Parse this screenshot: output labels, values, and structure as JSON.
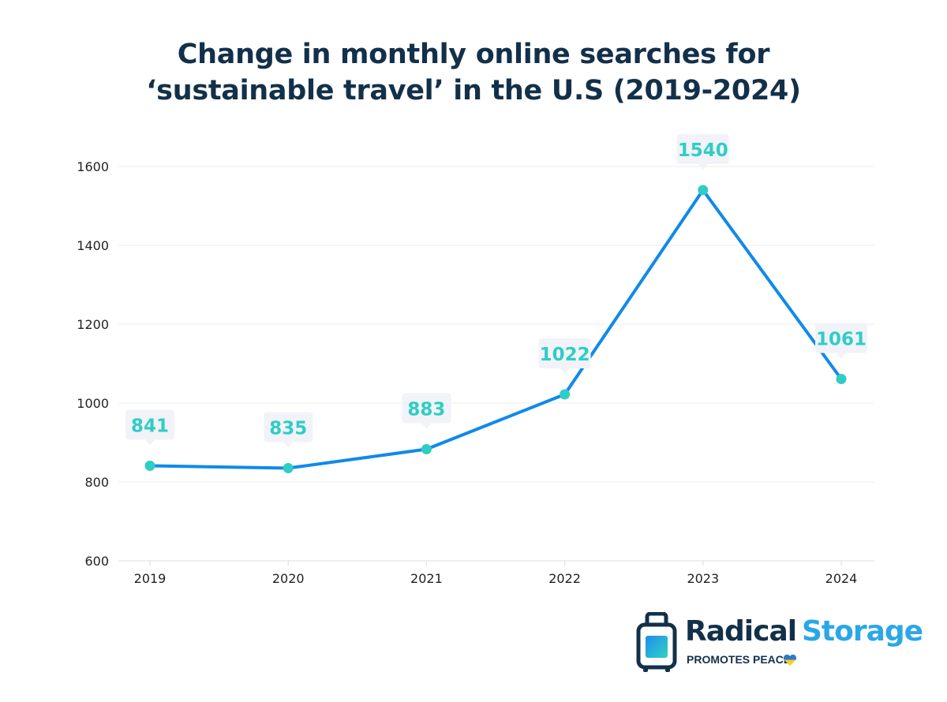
{
  "chart_data": {
    "type": "line",
    "title_line1": "Change in monthly online searches for",
    "title_line2": "‘sustainable travel’ in the U.S (2019-2024)",
    "categories": [
      "2019",
      "2020",
      "2021",
      "2022",
      "2023",
      "2024"
    ],
    "values": [
      841,
      835,
      883,
      1022,
      1540,
      1061
    ],
    "data_labels": [
      "841",
      "835",
      "883",
      "1022",
      "1540",
      "1061"
    ],
    "yticks": [
      600,
      800,
      1000,
      1200,
      1400,
      1600
    ],
    "ytick_labels": [
      "600",
      "800",
      "1000",
      "1200",
      "1400",
      "1600"
    ],
    "ylim": [
      600,
      1600
    ],
    "xlabel": "",
    "ylabel": "",
    "grid": true,
    "legend": "none",
    "colors": {
      "line": "#0f8aea",
      "marker": "#2fcdc6",
      "label_text": "#2fcdc6",
      "label_bg": "#f1f3f8",
      "grid": "#ececec",
      "axis_text": "#222222"
    }
  },
  "logo": {
    "word1": "Radical",
    "word2": "Storage",
    "tagline": "PROMOTES PEACE"
  }
}
